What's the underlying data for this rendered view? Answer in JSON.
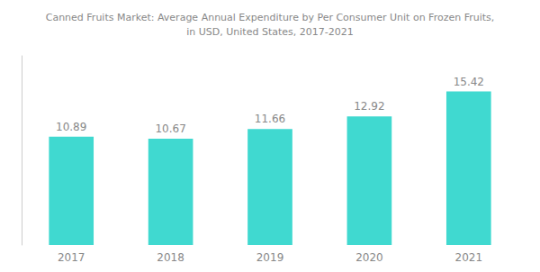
{
  "chart_data": {
    "type": "bar",
    "title": "Canned Fruits Market: Average Annual Expenditure by Per Consumer Unit on Frozen Fruits,\nin USD, United States, 2017-2021",
    "categories": [
      "2017",
      "2018",
      "2019",
      "2020",
      "2021"
    ],
    "values": [
      10.89,
      10.67,
      11.66,
      12.92,
      15.42
    ],
    "color": "#40D9D0",
    "ylim": [
      0,
      19
    ],
    "grid": false,
    "data_labels": true,
    "tick_labels": "x"
  }
}
